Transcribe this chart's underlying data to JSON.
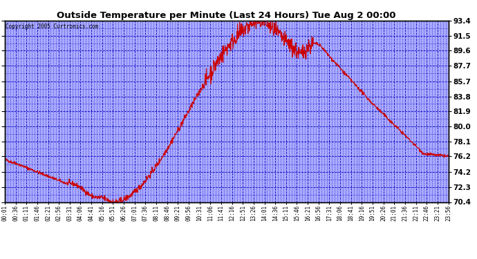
{
  "title": "Outside Temperature per Minute (Last 24 Hours) Tue Aug 2 00:00",
  "copyright": "Copyright 2005 Curtronics.com",
  "bg_color": "#ffffff",
  "plot_bg_color": "#aaaaff",
  "line_color": "#cc0000",
  "grid_color": "#0000bb",
  "yticks": [
    70.4,
    72.3,
    74.2,
    76.2,
    78.1,
    80.0,
    81.9,
    83.8,
    85.7,
    87.7,
    89.6,
    91.5,
    93.4
  ],
  "ylim": [
    70.4,
    93.4
  ],
  "xtick_labels": [
    "00:01",
    "00:36",
    "01:11",
    "01:46",
    "02:21",
    "02:56",
    "03:31",
    "04:06",
    "04:41",
    "05:16",
    "05:51",
    "06:26",
    "07:01",
    "07:36",
    "08:11",
    "08:46",
    "09:21",
    "09:56",
    "10:31",
    "11:06",
    "11:41",
    "12:16",
    "12:51",
    "13:26",
    "14:01",
    "14:36",
    "15:11",
    "15:46",
    "16:21",
    "16:56",
    "17:31",
    "18:06",
    "18:41",
    "19:16",
    "19:51",
    "20:26",
    "21:01",
    "21:36",
    "22:11",
    "22:46",
    "23:21",
    "23:56"
  ]
}
